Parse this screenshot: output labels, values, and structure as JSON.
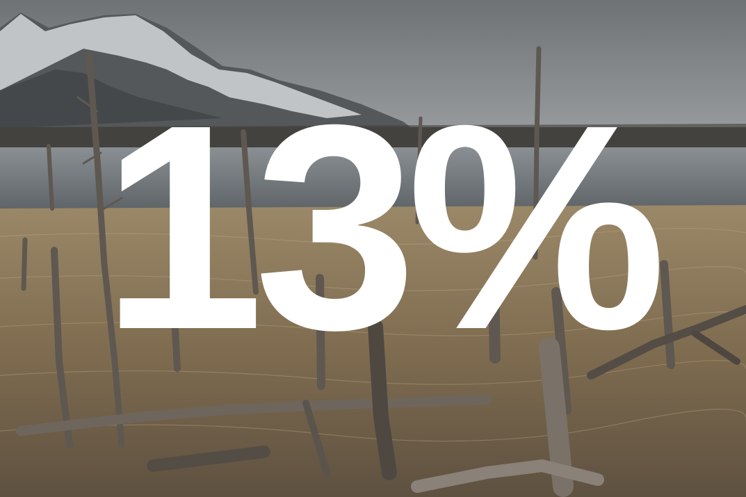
{
  "overlay": {
    "value": "13%"
  },
  "colors": {
    "sky": "#8e9193",
    "mountain_snow": "#d9dbdc",
    "mountain_rock": "#4a4d50",
    "water": "#7b8085",
    "shore": "#4b4a45",
    "grass": "#8d7a5b",
    "driftwood": "#6a625a",
    "text": "#ffffff"
  }
}
